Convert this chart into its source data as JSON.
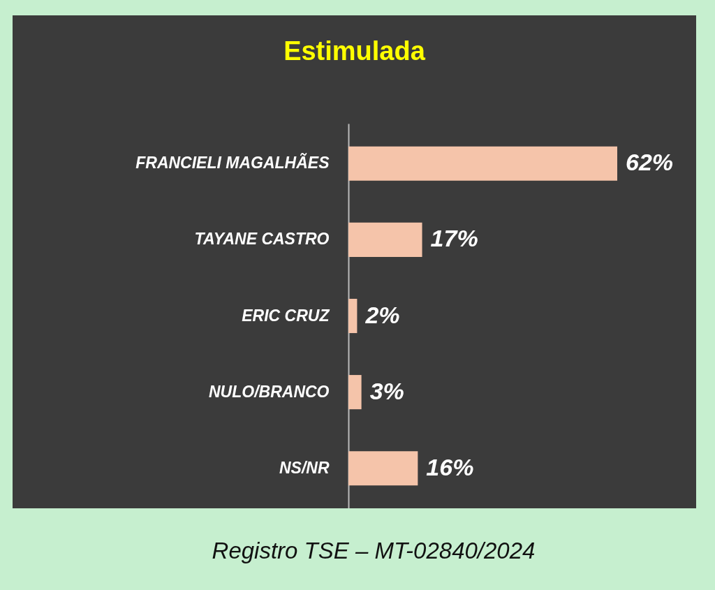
{
  "chart_data": {
    "type": "bar",
    "orientation": "horizontal",
    "title": "Estimulada",
    "categories": [
      "FRANCIELI MAGALHÃES",
      "TAYANE CASTRO",
      "ERIC CRUZ",
      "NULO/BRANCO",
      "NS/NR"
    ],
    "values": [
      62,
      17,
      2,
      3,
      16
    ],
    "value_labels": [
      "62%",
      "17%",
      "2%",
      "3%",
      "16%"
    ],
    "color": "#f5c4aa",
    "annotations": [
      "Registro TSE – MT-02840/2024"
    ]
  }
}
